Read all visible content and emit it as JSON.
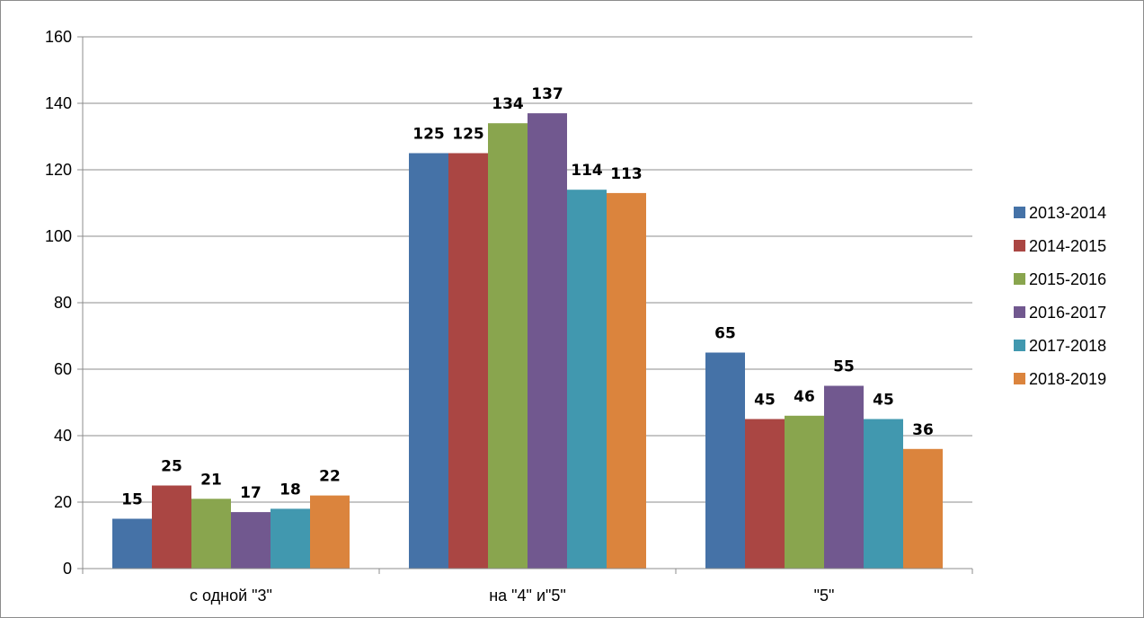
{
  "chart_data": {
    "type": "bar",
    "categories": [
      "с одной \"3\"",
      "на \"4\" и\"5\"",
      "\"5\""
    ],
    "series": [
      {
        "name": "2013-2014",
        "color": "#4572A7",
        "values": [
          15,
          125,
          65
        ]
      },
      {
        "name": "2014-2015",
        "color": "#AA4643",
        "values": [
          25,
          125,
          45
        ]
      },
      {
        "name": "2015-2016",
        "color": "#89A54E",
        "values": [
          21,
          134,
          46
        ]
      },
      {
        "name": "2016-2017",
        "color": "#71588F",
        "values": [
          17,
          137,
          55
        ]
      },
      {
        "name": "2017-2018",
        "color": "#4198AF",
        "values": [
          18,
          114,
          45
        ]
      },
      {
        "name": "2018-2019",
        "color": "#DB843D",
        "values": [
          22,
          113,
          36
        ]
      }
    ],
    "ylim": [
      0,
      160
    ],
    "yticks": [
      0,
      20,
      40,
      60,
      80,
      100,
      120,
      140,
      160
    ],
    "grid": true,
    "legend": "right",
    "data_labels": true
  }
}
